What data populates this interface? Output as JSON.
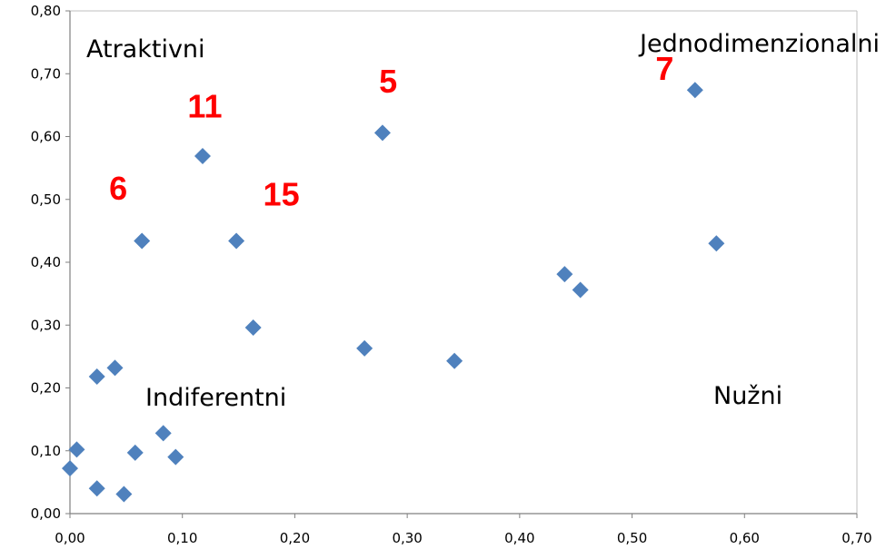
{
  "chart_data": {
    "type": "scatter",
    "title": "",
    "xlabel": "",
    "ylabel": "",
    "xlim": [
      0,
      0.7
    ],
    "ylim": [
      0,
      0.8
    ],
    "xticks": [
      "0,00",
      "0,10",
      "0,20",
      "0,30",
      "0,40",
      "0,50",
      "0,60",
      "0,70"
    ],
    "yticks": [
      "0,00",
      "0,10",
      "0,20",
      "0,30",
      "0,40",
      "0,50",
      "0,60",
      "0,70",
      "0,80"
    ],
    "grid": false,
    "marker": "diamond",
    "point_color": "#4f81bd",
    "series": [
      {
        "points": [
          [
            0.0,
            0.072
          ],
          [
            0.006,
            0.102
          ],
          [
            0.024,
            0.04
          ],
          [
            0.048,
            0.031
          ],
          [
            0.024,
            0.218
          ],
          [
            0.04,
            0.232
          ],
          [
            0.058,
            0.097
          ],
          [
            0.083,
            0.128
          ],
          [
            0.094,
            0.09
          ],
          [
            0.064,
            0.434
          ],
          [
            0.118,
            0.569
          ],
          [
            0.148,
            0.434
          ],
          [
            0.163,
            0.296
          ],
          [
            0.262,
            0.263
          ],
          [
            0.278,
            0.606
          ],
          [
            0.342,
            0.243
          ],
          [
            0.44,
            0.381
          ],
          [
            0.454,
            0.356
          ],
          [
            0.556,
            0.674
          ],
          [
            0.575,
            0.43
          ]
        ]
      }
    ],
    "quadrant_labels": [
      {
        "text": "Atraktivni",
        "position": "top-left"
      },
      {
        "text": "Jednodimenzionalni",
        "position": "top-right"
      },
      {
        "text": "Indiferentni",
        "position": "bottom-left"
      },
      {
        "text": "Nužni",
        "position": "bottom-right"
      }
    ],
    "annotation_color": "#ff0000",
    "annotations": [
      {
        "text": "6",
        "x": 0.043,
        "y": 0.5
      },
      {
        "text": "11",
        "x": 0.12,
        "y": 0.63
      },
      {
        "text": "15",
        "x": 0.188,
        "y": 0.49
      },
      {
        "text": "5",
        "x": 0.283,
        "y": 0.67
      },
      {
        "text": "7",
        "x": 0.529,
        "y": 0.69
      }
    ]
  }
}
